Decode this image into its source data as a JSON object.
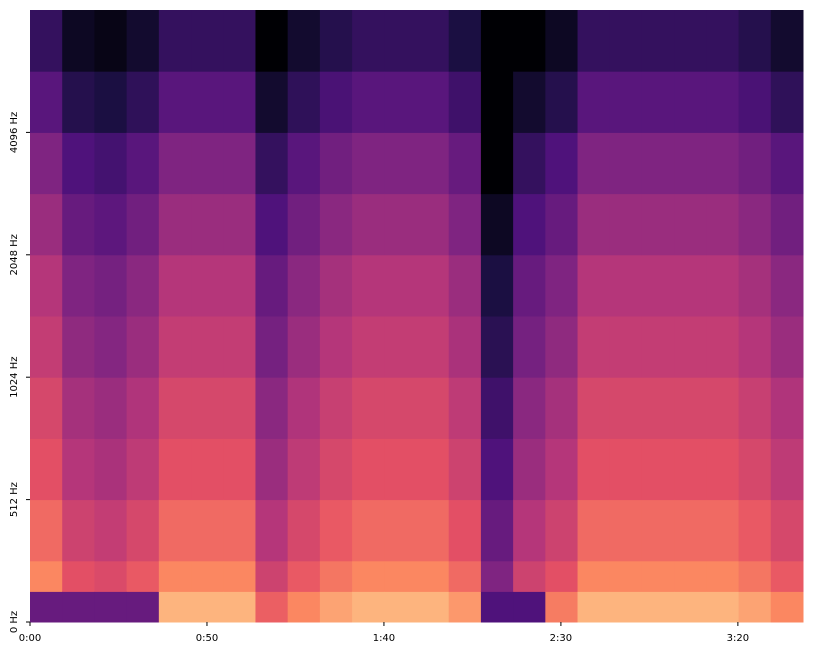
{
  "chart_data": {
    "type": "spectrogram",
    "colormap": "magma",
    "clim": [
      -80,
      0
    ],
    "yscale": "symlog",
    "linthresh": 512,
    "xlim": [
      0,
      218.4
    ],
    "ylim": [
      0,
      8192
    ],
    "xticks": [
      {
        "value": 0,
        "label": "0:00"
      },
      {
        "value": 50,
        "label": "0:50"
      },
      {
        "value": 100,
        "label": "1:40"
      },
      {
        "value": 150,
        "label": "2:30"
      },
      {
        "value": 200,
        "label": "3:20"
      }
    ],
    "yticks": [
      {
        "value": 0,
        "label": "0 Hz"
      },
      {
        "value": 512,
        "label": "512 Hz"
      },
      {
        "value": 1024,
        "label": "1024 Hz"
      },
      {
        "value": 2048,
        "label": "2048 Hz"
      },
      {
        "value": 4096,
        "label": "4096 Hz"
      }
    ],
    "xbins": [
      0,
      9.1,
      18.2,
      27.3,
      36.4,
      45.5,
      54.6,
      63.7,
      72.8,
      81.9,
      91,
      100.1,
      109.2,
      118.3,
      127.4,
      136.5,
      145.6,
      154.7,
      163.8,
      172.9,
      182,
      191.1,
      200.2,
      209.3,
      218.4
    ],
    "ybins": [
      0,
      128,
      256,
      512,
      724,
      1024,
      1448,
      2048,
      2896,
      4096,
      5793,
      8192
    ],
    "values": [
      [
        -55,
        -20,
        -25,
        -30,
        -33,
        -37,
        -40,
        -45,
        -50,
        -58,
        -65
      ],
      [
        -55,
        -30,
        -35,
        -40,
        -43,
        -47,
        -50,
        -55,
        -60,
        -68,
        -75
      ],
      [
        -55,
        -32,
        -37,
        -42,
        -45,
        -49,
        -52,
        -57,
        -62,
        -70,
        -77
      ],
      [
        -55,
        -28,
        -33,
        -38,
        -41,
        -45,
        -48,
        -53,
        -58,
        -66,
        -73
      ],
      [
        -12,
        -20,
        -25,
        -30,
        -33,
        -37,
        -40,
        -45,
        -50,
        -58,
        -65
      ],
      [
        -12,
        -20,
        -25,
        -30,
        -33,
        -37,
        -40,
        -45,
        -50,
        -58,
        -65
      ],
      [
        -12,
        -20,
        -25,
        -30,
        -33,
        -37,
        -40,
        -45,
        -50,
        -58,
        -65
      ],
      [
        -27,
        -35,
        -40,
        -45,
        -48,
        -52,
        -55,
        -60,
        -65,
        -73,
        -80
      ],
      [
        -20,
        -28,
        -33,
        -38,
        -41,
        -45,
        -48,
        -53,
        -58,
        -66,
        -73
      ],
      [
        -15,
        -23,
        -28,
        -33,
        -36,
        -40,
        -43,
        -48,
        -53,
        -61,
        -68
      ],
      [
        -12,
        -20,
        -25,
        -30,
        -33,
        -37,
        -40,
        -45,
        -50,
        -58,
        -65
      ],
      [
        -12,
        -20,
        -25,
        -30,
        -33,
        -37,
        -40,
        -45,
        -50,
        -58,
        -65
      ],
      [
        -12,
        -20,
        -25,
        -30,
        -33,
        -37,
        -40,
        -45,
        -50,
        -58,
        -65
      ],
      [
        -17,
        -25,
        -30,
        -35,
        -38,
        -42,
        -45,
        -50,
        -55,
        -63,
        -70
      ],
      [
        -60,
        -50,
        -55,
        -60,
        -63,
        -67,
        -70,
        -75,
        -80,
        -80,
        -80
      ],
      [
        -60,
        -35,
        -40,
        -45,
        -48,
        -52,
        -55,
        -60,
        -65,
        -73,
        -80
      ],
      [
        -22,
        -30,
        -35,
        -40,
        -43,
        -47,
        -50,
        -55,
        -60,
        -68,
        -75
      ],
      [
        -12,
        -20,
        -25,
        -30,
        -33,
        -37,
        -40,
        -45,
        -50,
        -58,
        -65
      ],
      [
        -12,
        -20,
        -25,
        -30,
        -33,
        -37,
        -40,
        -45,
        -50,
        -58,
        -65
      ],
      [
        -12,
        -20,
        -25,
        -30,
        -33,
        -37,
        -40,
        -45,
        -50,
        -58,
        -65
      ],
      [
        -12,
        -20,
        -25,
        -30,
        -33,
        -37,
        -40,
        -45,
        -50,
        -58,
        -65
      ],
      [
        -12,
        -20,
        -25,
        -30,
        -33,
        -37,
        -40,
        -45,
        -50,
        -58,
        -65
      ],
      [
        -15,
        -23,
        -28,
        -33,
        -36,
        -40,
        -43,
        -48,
        -53,
        -61,
        -68
      ],
      [
        -20,
        -28,
        -33,
        -38,
        -41,
        -45,
        -48,
        -53,
        -58,
        -66,
        -73
      ]
    ]
  }
}
